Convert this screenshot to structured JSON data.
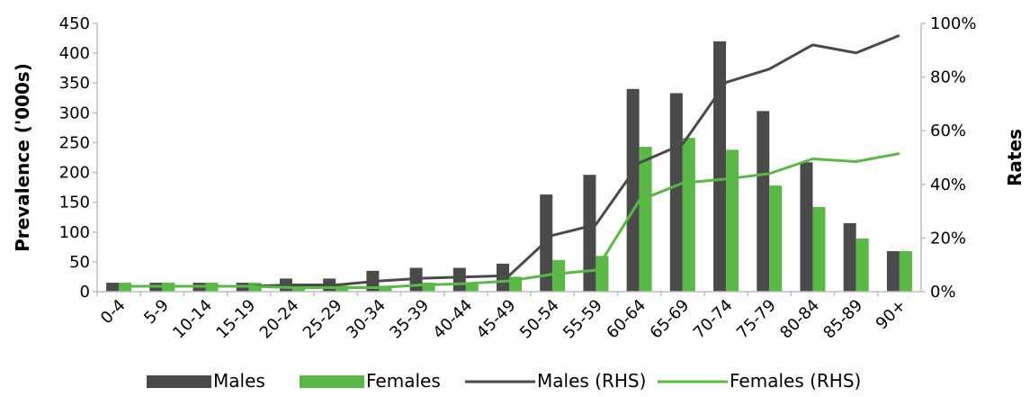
{
  "chart_data": {
    "type": "bar",
    "categories": [
      "0-4",
      "5-9",
      "10-14",
      "15-19",
      "20-24",
      "25-29",
      "30-34",
      "35-39",
      "40-44",
      "45-49",
      "50-54",
      "55-59",
      "60-64",
      "65-69",
      "70-74",
      "75-79",
      "80-84",
      "85-89",
      "90+"
    ],
    "series": [
      {
        "name": "Males",
        "type": "bar",
        "axis": "left",
        "color": "#4a4a4a",
        "values": [
          15,
          15,
          15,
          15,
          22,
          22,
          35,
          40,
          40,
          47,
          163,
          196,
          340,
          333,
          420,
          303,
          217,
          115,
          68
        ]
      },
      {
        "name": "Females",
        "type": "bar",
        "axis": "left",
        "color": "#5ab946",
        "values": [
          15,
          15,
          15,
          15,
          10,
          10,
          10,
          15,
          15,
          25,
          53,
          60,
          243,
          258,
          238,
          178,
          142,
          89,
          68
        ]
      },
      {
        "name": "Males (RHS)",
        "type": "line",
        "axis": "right",
        "color": "#4a4a4a",
        "values": [
          2,
          2,
          2,
          2,
          2.5,
          2.5,
          4,
          5,
          5.5,
          6,
          21,
          25,
          48,
          55,
          78,
          83,
          92,
          89,
          95.5
        ]
      },
      {
        "name": "Females (RHS)",
        "type": "line",
        "axis": "right",
        "color": "#5ab946",
        "values": [
          2,
          2,
          2,
          2,
          1.5,
          1.5,
          1.5,
          2.5,
          3,
          4,
          6.5,
          8,
          34,
          40.5,
          42,
          44,
          49.5,
          48.5,
          51.5
        ]
      }
    ],
    "ylabel": "Prevalence ('000s)",
    "y2label": "Rates",
    "ylim": [
      0,
      450
    ],
    "y2lim": [
      0,
      100
    ],
    "yticks": [
      "0",
      "50",
      "100",
      "150",
      "200",
      "250",
      "300",
      "350",
      "400",
      "450"
    ],
    "y2ticks": [
      "0%",
      "20%",
      "40%",
      "60%",
      "80%",
      "100%"
    ],
    "legend_position": "bottom",
    "grid": false
  }
}
